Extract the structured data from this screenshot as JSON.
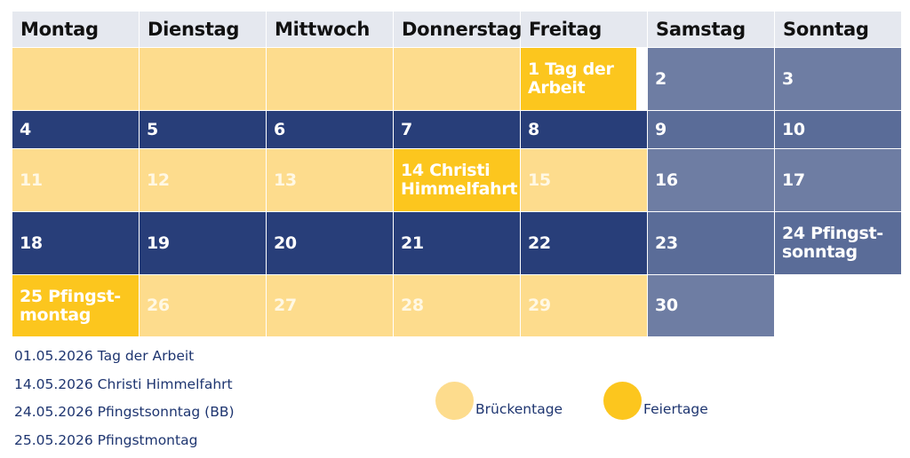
{
  "weekdays": [
    "Montag",
    "Dienstag",
    "Mittwoch",
    "Donnerstag",
    "Freitag",
    "Samstag",
    "Sonntag"
  ],
  "calendar": {
    "d1": "1 Tag der Arbeit",
    "d2": "2",
    "d3": "3",
    "d4": "4",
    "d5": "5",
    "d6": "6",
    "d7": "7",
    "d8": "8",
    "d9": "9",
    "d10": "10",
    "d11": "11",
    "d12": "12",
    "d13": "13",
    "d14": "14 Christi Himmelfahrt",
    "d15": "15",
    "d16": "16",
    "d17": "17",
    "d18": "18",
    "d19": "19",
    "d20": "20",
    "d21": "21",
    "d22": "22",
    "d23": "23",
    "d24": "24 Pfingst-sonntag",
    "d25": "25 Pfingst-montag",
    "d26": "26",
    "d27": "27",
    "d28": "28",
    "d29": "29",
    "d30": "30"
  },
  "holidays_list": [
    "01.05.2026 Tag der Arbeit",
    "14.05.2026 Christi Himmelfahrt",
    "24.05.2026 Pfingstsonntag (BB)",
    "25.05.2026 Pfingstmontag"
  ],
  "legend": {
    "bridge_days": "Brückentage",
    "holidays": "Feiertage"
  },
  "colors": {
    "bridge_day": "#fddc8d",
    "holiday": "#fcc61e",
    "workday": "#283e79",
    "weekend": "#6e7da3",
    "header": "#e5e8ef",
    "text_blue": "#1e3570"
  }
}
